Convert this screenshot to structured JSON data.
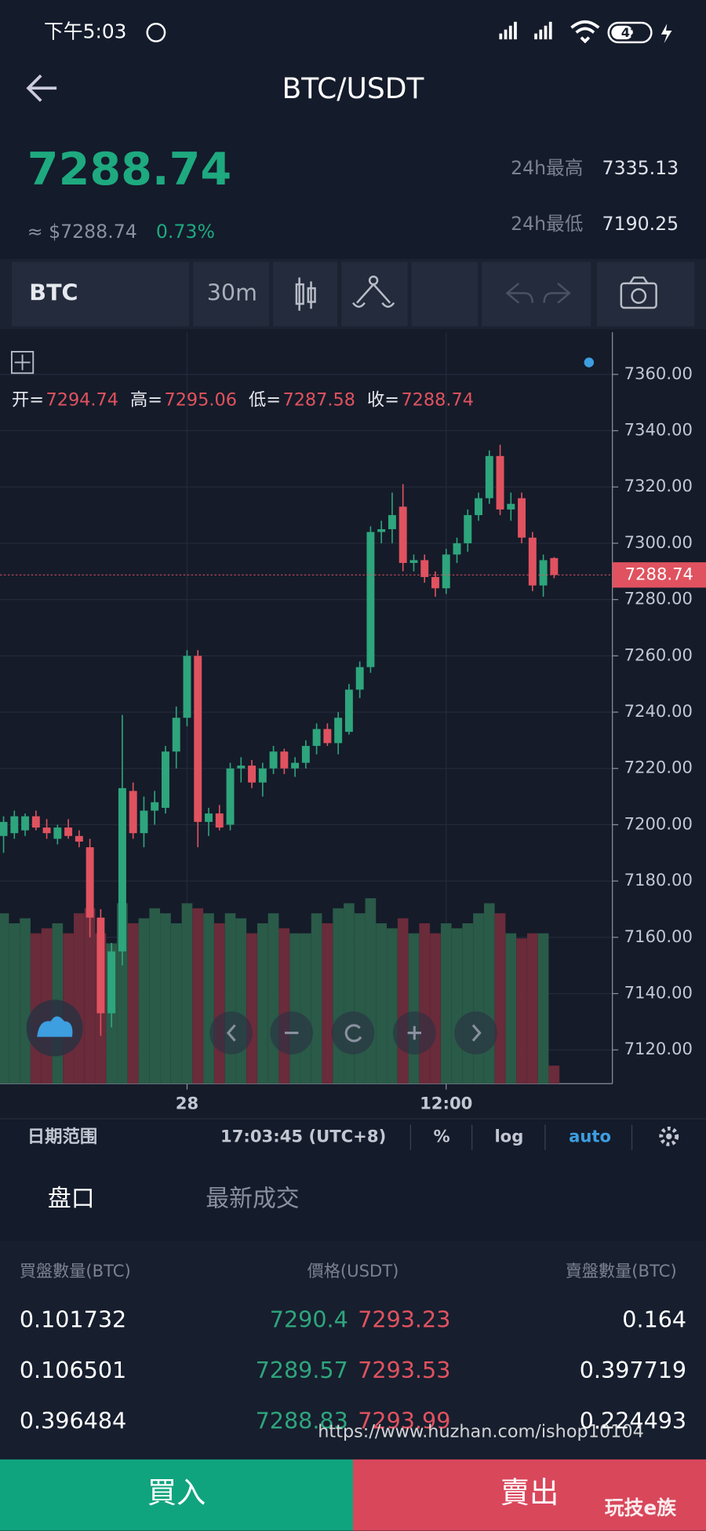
{
  "status_bar": {
    "time": "下午5:03",
    "battery": "42"
  },
  "header": {
    "title": "BTC/USDT"
  },
  "ticker": {
    "price": "7288.74",
    "usd_price": "≈ $7288.74",
    "change": "0.73%",
    "high_label": "24h最高",
    "high": "7335.13",
    "low_label": "24h最低",
    "low": "7190.25"
  },
  "toolbar": {
    "symbol": "BTC",
    "interval": "30m"
  },
  "chart_data": {
    "type": "candlestick",
    "open": [
      7196,
      7197,
      7198,
      7203,
      7199,
      7195,
      7199,
      7196,
      7192,
      7167,
      7133,
      7155,
      7212,
      7197,
      7205,
      7206,
      7226,
      7238,
      7260,
      7201,
      7204,
      7200,
      7220,
      7221,
      7215,
      7220,
      7226,
      7220,
      7222,
      7228,
      7234,
      7229,
      7233,
      7248,
      7256,
      7304,
      7305,
      7313,
      7293,
      7294,
      7288,
      7284,
      7296,
      7300,
      7310,
      7316,
      7331,
      7312,
      7316,
      7302,
      7285,
      7294.74
    ],
    "high": [
      7203,
      7205,
      7204,
      7205,
      7202,
      7200,
      7202,
      7198,
      7195,
      7170,
      7158,
      7239,
      7215,
      7210,
      7212,
      7228,
      7242,
      7262,
      7262,
      7206,
      7207,
      7222,
      7224,
      7223,
      7222,
      7228,
      7227,
      7224,
      7230,
      7236,
      7236,
      7240,
      7250,
      7258,
      7306,
      7308,
      7318,
      7321,
      7296,
      7296,
      7290,
      7298,
      7302,
      7312,
      7318,
      7333,
      7335,
      7318,
      7318,
      7304,
      7296,
      7295.06
    ],
    "low": [
      7190,
      7195,
      7196,
      7198,
      7195,
      7193,
      7195,
      7192,
      7160,
      7125,
      7128,
      7150,
      7195,
      7192,
      7200,
      7204,
      7220,
      7235,
      7192,
      7196,
      7198,
      7198,
      7215,
      7213,
      7210,
      7218,
      7218,
      7217,
      7220,
      7225,
      7228,
      7225,
      7232,
      7245,
      7254,
      7300,
      7300,
      7290,
      7290,
      7286,
      7281,
      7282,
      7293,
      7297,
      7308,
      7314,
      7310,
      7308,
      7300,
      7283,
      7281,
      7287.58
    ],
    "close": [
      7201,
      7203,
      7203,
      7199,
      7197,
      7199,
      7196,
      7194,
      7167,
      7133,
      7155,
      7213,
      7197,
      7205,
      7208,
      7226,
      7238,
      7260,
      7201,
      7204,
      7199,
      7220,
      7221,
      7215,
      7220,
      7226,
      7220,
      7222,
      7228,
      7234,
      7229,
      7238,
      7248,
      7256,
      7304,
      7305,
      7310,
      7293,
      7294,
      7288,
      7284,
      7296,
      7300,
      7310,
      7316,
      7331,
      7312,
      7314,
      7302,
      7285,
      7294,
      7288.74
    ],
    "volume": [
      170,
      160,
      165,
      150,
      155,
      160,
      150,
      170,
      175,
      150,
      140,
      180,
      160,
      165,
      175,
      170,
      160,
      180,
      175,
      170,
      160,
      170,
      165,
      150,
      160,
      170,
      155,
      150,
      150,
      170,
      160,
      175,
      180,
      170,
      185,
      160,
      155,
      165,
      150,
      160,
      150,
      160,
      155,
      160,
      170,
      180,
      170,
      150,
      145,
      150,
      150,
      18
    ],
    "ohlc_labels": [
      "开=",
      "高=",
      "低=",
      "收="
    ],
    "ylim": [
      7108,
      7375
    ],
    "yticks": [
      {
        "value": 7120,
        "label": "7120.00"
      },
      {
        "value": 7140,
        "label": "7140.00"
      },
      {
        "value": 7160,
        "label": "7160.00"
      },
      {
        "value": 7180,
        "label": "7180.00"
      },
      {
        "value": 7200,
        "label": "7200.00"
      },
      {
        "value": 7220,
        "label": "7220.00"
      },
      {
        "value": 7240,
        "label": "7240.00"
      },
      {
        "value": 7260,
        "label": "7260.00"
      },
      {
        "value": 7280,
        "label": "7280.00"
      },
      {
        "value": 7300,
        "label": "7300.00"
      },
      {
        "value": 7320,
        "label": "7320.00"
      },
      {
        "value": 7340,
        "label": "7340.00"
      },
      {
        "value": 7360,
        "label": "7360.00"
      }
    ],
    "xlim": [
      -0.33,
      56.4
    ],
    "xticks": [
      {
        "value": 17,
        "label": "28"
      },
      {
        "value": 41,
        "label": "12:00"
      }
    ],
    "grid": true,
    "up_color": "#2ea57c",
    "down_color": "#e0525f",
    "volume_up_color": "#2a5a48",
    "volume_down_color": "#6a2b3a"
  },
  "chart_footer": {
    "range": "日期范围",
    "time": "17:03:45 (UTC+8)",
    "percent": "%",
    "log": "log",
    "auto": "auto"
  },
  "tabs": [
    "盘口",
    "最新成交"
  ],
  "order_book": {
    "columns": [
      "買盤數量(BTC)",
      "價格(USDT)",
      "賣盤數量(BTC)"
    ],
    "rows": [
      [
        "0.101732",
        "7290.4",
        "7293.23",
        "0.164"
      ],
      [
        "0.106501",
        "7289.57",
        "7293.53",
        "0.397719"
      ],
      [
        "0.396484",
        "7288.83",
        "7293.99",
        "0.224493"
      ]
    ]
  },
  "actions": {
    "buy": "買入",
    "sell": "賣出"
  },
  "watermark": {
    "url": "https://www.huzhan.com/ishop10104",
    "brand": "玩技e族"
  }
}
